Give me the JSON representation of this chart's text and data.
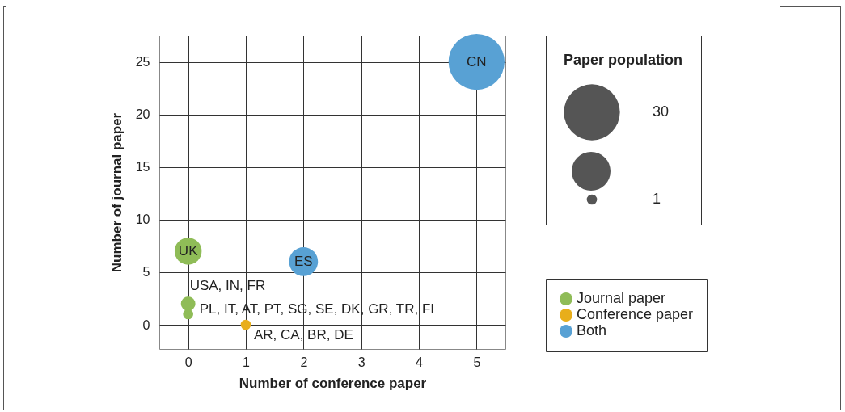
{
  "chart_data": {
    "type": "bubble",
    "xlabel": "Number of conference paper",
    "ylabel": "Number of journal paper",
    "legend_title": "Paper population",
    "xlim": [
      -0.5,
      5.5
    ],
    "xticks": [
      0,
      1,
      2,
      3,
      4,
      5
    ],
    "ylim": [
      -2.3,
      27.5
    ],
    "yticks": [
      0,
      5,
      10,
      15,
      20,
      25
    ],
    "grid": true,
    "legend": "right",
    "marker": "circle",
    "size_legend": [
      30,
      1
    ],
    "series": [
      {
        "name": "Journal paper",
        "color": "#8fbc57",
        "x": [
          0,
          0,
          0
        ],
        "values": [
          7,
          2,
          1
        ],
        "sizes": [
          7,
          2,
          1
        ]
      },
      {
        "name": "Conference paper",
        "color": "#e8ae1b",
        "x": [
          1
        ],
        "values": [
          0
        ],
        "sizes": [
          1
        ]
      },
      {
        "name": "Both",
        "color": "#58a1d4",
        "x": [
          2,
          5
        ],
        "values": [
          6,
          25
        ],
        "sizes": [
          8,
          30
        ]
      }
    ],
    "annotations": [
      {
        "text": "UK",
        "x": 0,
        "y": 7
      },
      {
        "text": "USA, IN, FR",
        "x": 0,
        "y": 2
      },
      {
        "text": "PL, IT, AT, PT, SG, SE, DK, GR, TR, FI",
        "x": 0,
        "y": 1
      },
      {
        "text": "AR, CA, BR, DE",
        "x": 1,
        "y": 0
      },
      {
        "text": "ES",
        "x": 2,
        "y": 6
      },
      {
        "text": "CN",
        "x": 5,
        "y": 25
      }
    ]
  }
}
